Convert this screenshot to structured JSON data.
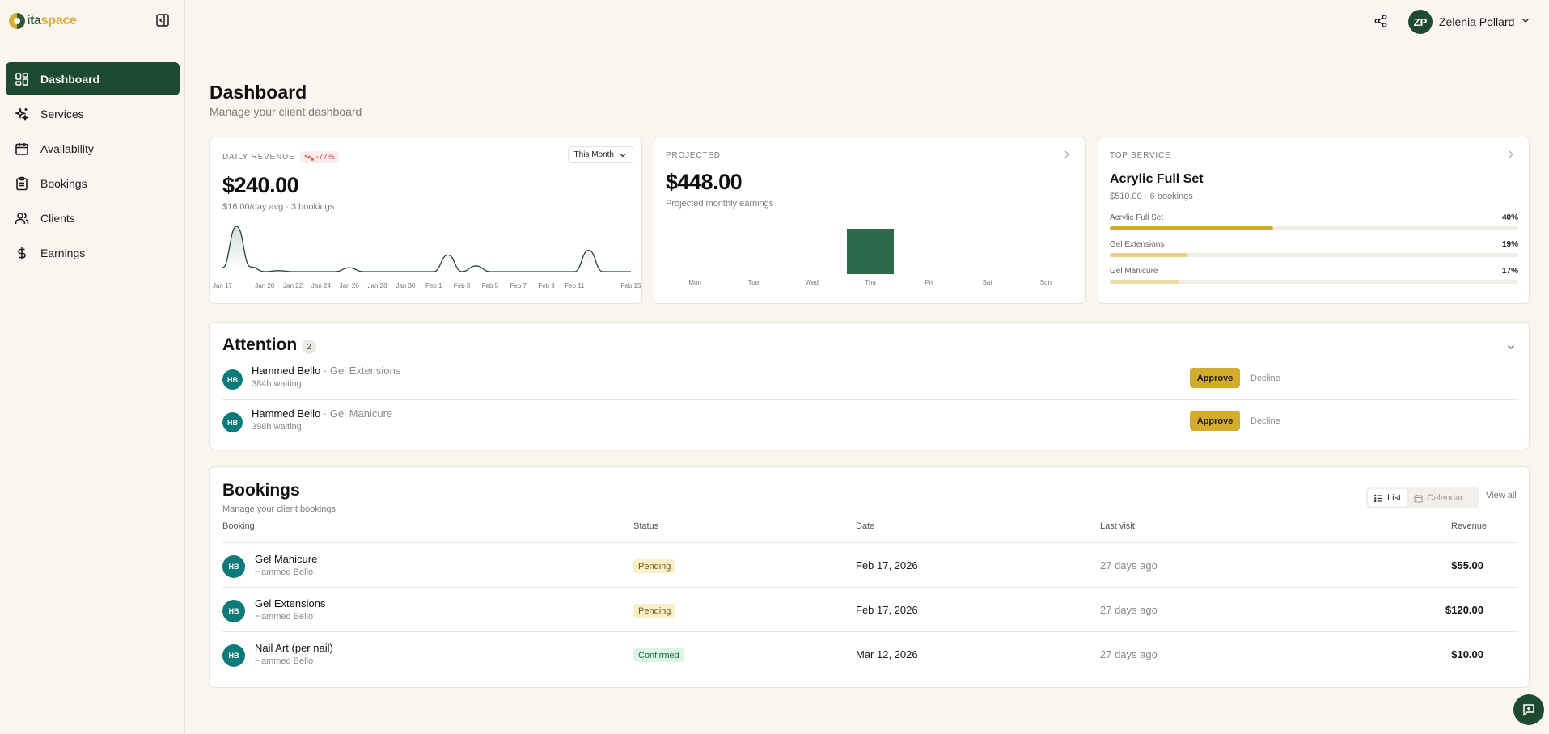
{
  "brand": {
    "logo_a": "ita",
    "logo_b": "space"
  },
  "nav": {
    "items": [
      {
        "label": "Dashboard",
        "icon": "dashboard-icon"
      },
      {
        "label": "Services",
        "icon": "sparkles-icon"
      },
      {
        "label": "Availability",
        "icon": "calendar-icon"
      },
      {
        "label": "Bookings",
        "icon": "clipboard-icon"
      },
      {
        "label": "Clients",
        "icon": "users-icon"
      },
      {
        "label": "Earnings",
        "icon": "dollar-icon"
      }
    ]
  },
  "header": {
    "user_initials": "ZP",
    "user_name": "Zelenia Pollard"
  },
  "page": {
    "title": "Dashboard",
    "subtitle": "Manage your client dashboard"
  },
  "revenue_card": {
    "label": "Daily Revenue",
    "change": "-77%",
    "range": "This Month",
    "amount": "$240.00",
    "meta": "$16.00/day avg · 3 bookings"
  },
  "projected_card": {
    "label": "Projected",
    "amount": "$448.00",
    "meta": "Projected monthly earnings"
  },
  "top_service_card": {
    "label": "Top Service",
    "name": "Acrylic Full Set",
    "meta": "$510.00 · 6 bookings",
    "items": [
      {
        "name": "Acrylic Full Set",
        "pct": "40%",
        "value": 40,
        "color": "#d4ac2c"
      },
      {
        "name": "Gel Extensions",
        "pct": "19%",
        "value": 19,
        "color": "#e6cf85"
      },
      {
        "name": "Gel Manicure",
        "pct": "17%",
        "value": 17,
        "color": "#ecdca6"
      }
    ]
  },
  "chart_data": [
    {
      "type": "area",
      "x": [
        "Jan 17",
        "Jan 18",
        "Jan 19",
        "Jan 20",
        "Jan 21",
        "Jan 22",
        "Jan 23",
        "Jan 24",
        "Jan 25",
        "Jan 26",
        "Jan 27",
        "Jan 28",
        "Jan 29",
        "Jan 30",
        "Jan 31",
        "Feb 1",
        "Feb 2",
        "Feb 3",
        "Feb 4",
        "Feb 5",
        "Feb 6",
        "Feb 7",
        "Feb 8",
        "Feb 9",
        "Feb 10",
        "Feb 11",
        "Feb 12",
        "Feb 13",
        "Feb 14",
        "Feb 15"
      ],
      "y": [
        8,
        95,
        10,
        0,
        2,
        0,
        0,
        0,
        0,
        8,
        0,
        0,
        0,
        0,
        0,
        0,
        35,
        0,
        12,
        0,
        0,
        0,
        0,
        0,
        0,
        0,
        45,
        0,
        0,
        0
      ],
      "tick_labels": [
        "Jan 17",
        "Jan 20",
        "Jan 22",
        "Jan 24",
        "Jan 26",
        "Jan 28",
        "Jan 30",
        "Feb 1",
        "Feb 3",
        "Feb 5",
        "Feb 7",
        "Feb 9",
        "Feb 11",
        "Feb 15"
      ],
      "color": "#1f4a32",
      "grid": false
    },
    {
      "type": "bar",
      "categories": [
        "Mon",
        "Tue",
        "Wed",
        "Thu",
        "Fri",
        "Sat",
        "Sun"
      ],
      "values": [
        0,
        0,
        0,
        448,
        0,
        0,
        0
      ],
      "color": "#2d6a4a",
      "grid": false
    }
  ],
  "attention": {
    "title": "Attention",
    "count": "2",
    "items": [
      {
        "initials": "HB",
        "name": "Hammed Bello",
        "service": "· Gel Extensions",
        "wait": "384h waiting",
        "approve": "Approve",
        "decline": "Decline"
      },
      {
        "initials": "HB",
        "name": "Hammed Bello",
        "service": "· Gel Manicure",
        "wait": "398h waiting",
        "approve": "Approve",
        "decline": "Decline"
      }
    ]
  },
  "bookings": {
    "title": "Bookings",
    "subtitle": "Manage your client bookings",
    "view_list": "List",
    "view_calendar": "Calendar",
    "view_all": "View all",
    "columns": [
      "Booking",
      "Status",
      "Date",
      "Last visit",
      "Revenue"
    ],
    "rows": [
      {
        "initials": "HB",
        "service": "Gel Manicure",
        "client": "Hammed Bello",
        "status": "Pending",
        "date": "Feb 17, 2026",
        "last": "27 days ago",
        "revenue": "$55.00"
      },
      {
        "initials": "HB",
        "service": "Gel Extensions",
        "client": "Hammed Bello",
        "status": "Pending",
        "date": "Feb 17, 2026",
        "last": "27 days ago",
        "revenue": "$120.00"
      },
      {
        "initials": "HB",
        "service": "Nail Art (per nail)",
        "client": "Hammed Bello",
        "status": "Confirmed",
        "date": "Mar 12, 2026",
        "last": "27 days ago",
        "revenue": "$10.00"
      }
    ]
  }
}
